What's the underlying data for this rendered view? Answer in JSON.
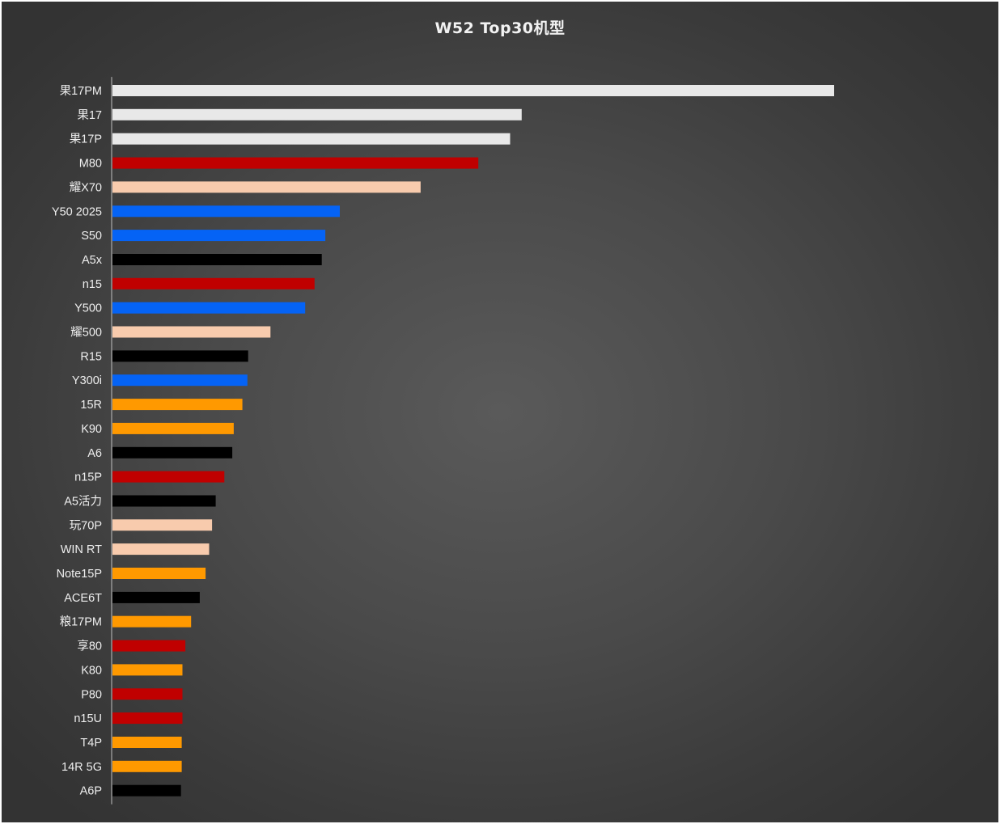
{
  "chart_data": {
    "type": "bar",
    "orientation": "horizontal",
    "title": "W52 Top30机型",
    "xlabel": "",
    "ylabel": "",
    "grid": false,
    "legend": "none",
    "xlim": [
      0,
      100
    ],
    "categories": [
      "果17PM",
      "果17",
      "果17P",
      "M80",
      "耀X70",
      "Y50 2025",
      "S50",
      "A5x",
      "n15",
      "Y500",
      "耀500",
      "R15",
      "Y300i",
      "15R",
      "K90",
      "A6",
      "n15P",
      "A5活力",
      "玩70P",
      "WIN RT",
      "Note15P",
      "ACE6T",
      "粮17PM",
      "享80",
      "K80",
      "P80",
      "n15U",
      "T4P",
      "14R 5G",
      "A6P"
    ],
    "values": [
      100,
      56.7,
      55.1,
      50.7,
      42.7,
      31.5,
      29.5,
      29.0,
      28.0,
      26.7,
      21.9,
      18.8,
      18.7,
      18.0,
      16.8,
      16.6,
      15.5,
      14.3,
      13.8,
      13.4,
      12.9,
      12.1,
      10.9,
      10.1,
      9.7,
      9.7,
      9.7,
      9.6,
      9.6,
      9.5
    ],
    "colors": [
      "#e8e8e8",
      "#e8e8e8",
      "#e8e8e8",
      "#c00000",
      "#f8cbad",
      "#0563f5",
      "#0563f5",
      "#000000",
      "#c00000",
      "#0563f5",
      "#f8cbad",
      "#000000",
      "#0563f5",
      "#ff9900",
      "#ff9900",
      "#000000",
      "#c00000",
      "#000000",
      "#f8cbad",
      "#f8cbad",
      "#ff9900",
      "#000000",
      "#ff9900",
      "#c00000",
      "#ff9900",
      "#c00000",
      "#c00000",
      "#ff9900",
      "#ff9900",
      "#000000"
    ]
  },
  "style": {
    "background_center": "#5a5a5a",
    "background_edge": "#333333",
    "axis_color": "#bfbfbf",
    "label_color": "#eeeeee",
    "title_color": "#f2f2f2"
  }
}
